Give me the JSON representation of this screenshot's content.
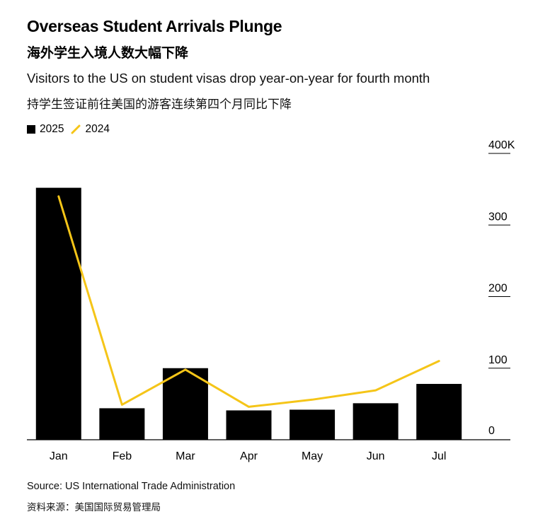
{
  "header": {
    "title": "Overseas Student Arrivals Plunge",
    "title_cn": "海外学生入境人数大幅下降",
    "subtitle": "Visitors to the US on student visas drop year-on-year for fourth month",
    "subtitle_cn": "持学生签证前往美国的游客连续第四个月同比下降"
  },
  "legend": {
    "items": [
      {
        "label": "2025",
        "kind": "bar",
        "color": "#000000"
      },
      {
        "label": "2024",
        "kind": "line",
        "color": "#F5C518"
      }
    ]
  },
  "footer": {
    "source": "Source: US International Trade Administration",
    "source_cn": "资料来源：美国国际贸易管理局"
  },
  "chart_data": {
    "type": "bar",
    "categories": [
      "Jan",
      "Feb",
      "Mar",
      "Apr",
      "May",
      "Jun",
      "Jul"
    ],
    "series": [
      {
        "name": "2025",
        "type": "bar",
        "color": "#000000",
        "values": [
          352,
          44,
          100,
          41,
          42,
          51,
          78
        ]
      },
      {
        "name": "2024",
        "type": "line",
        "color": "#F5C518",
        "values": [
          340,
          49,
          98,
          46,
          56,
          69,
          110
        ]
      }
    ],
    "ylim": [
      0,
      400
    ],
    "yticks": [
      {
        "value": 0,
        "label": "0"
      },
      {
        "value": 100,
        "label": "100"
      },
      {
        "value": 200,
        "label": "200"
      },
      {
        "value": 300,
        "label": "300"
      },
      {
        "value": 400,
        "label": "400K"
      }
    ],
    "xlabel": "",
    "ylabel": "",
    "grid": false,
    "legend_position": "top-left",
    "y_axis_side": "right"
  }
}
